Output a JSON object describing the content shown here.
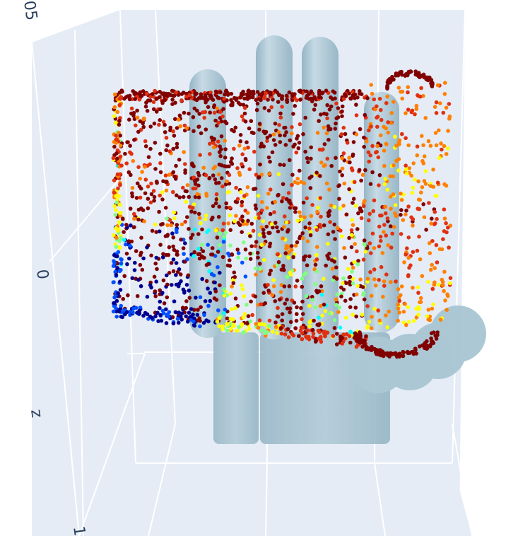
{
  "chart_data": {
    "type": "scatter3d",
    "title": "",
    "axes": {
      "z": {
        "title": "z",
        "tick_labels": [
          "05",
          "0",
          "1"
        ]
      }
    },
    "series": [
      {
        "kind": "mesh3d",
        "color": "#a9c6d4",
        "opacity": 0.85
      },
      {
        "kind": "scatter3d-markers",
        "colorscale": "Jet",
        "colors": [
          "#00008f",
          "#0050ff",
          "#00ffff",
          "#80ff80",
          "#ffff00",
          "#ff8000",
          "#e03010",
          "#800000"
        ],
        "point_count": 2200
      }
    ],
    "grid": true,
    "legend": "none",
    "colors": {
      "plot_background": "#e5ecf6",
      "grid": "#ffffff",
      "tick_text": "#2a3f5f"
    }
  }
}
